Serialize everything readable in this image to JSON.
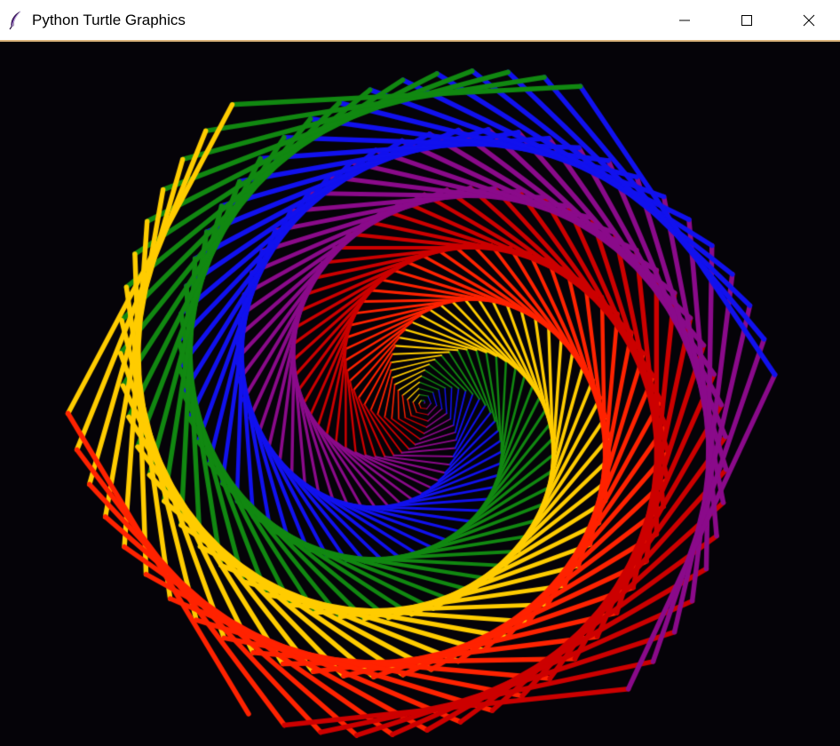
{
  "window": {
    "title": "Python Turtle Graphics",
    "app_icon": "feather-icon",
    "controls": {
      "minimize_icon": "minimize-icon",
      "maximize_icon": "maximize-icon",
      "close_icon": "close-icon"
    }
  },
  "canvas": {
    "background": "#050308",
    "drawing": "spiral-hexagon",
    "pen_colors": [
      "#cc0000",
      "#8a0a8a",
      "#1111ee",
      "#118811",
      "#ffcc00",
      "#ff2200"
    ],
    "palette_names": [
      "red",
      "purple",
      "blue",
      "green",
      "yellow",
      "orange"
    ]
  }
}
